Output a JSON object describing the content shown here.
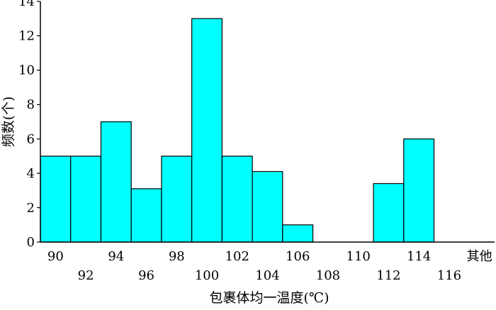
{
  "chart_data": {
    "type": "bar",
    "title": "",
    "xlabel": "包裹体均一温度(℃)",
    "ylabel": "频数(个)",
    "categories": [
      "90",
      "92",
      "94",
      "96",
      "98",
      "100",
      "102",
      "104",
      "106",
      "108",
      "110",
      "112",
      "114",
      "116",
      "其他"
    ],
    "values": [
      5,
      5,
      7,
      3.1,
      5,
      13,
      5,
      4.1,
      1,
      0,
      0,
      3.4,
      6,
      0,
      0
    ],
    "ylim": [
      0,
      14
    ],
    "yticks": [
      "0",
      "2",
      "4",
      "6",
      "8",
      "10",
      "12",
      "14"
    ],
    "grid": false,
    "legend": "none",
    "bar_color": "#00ffff",
    "bar_edge_color": "#000000"
  }
}
